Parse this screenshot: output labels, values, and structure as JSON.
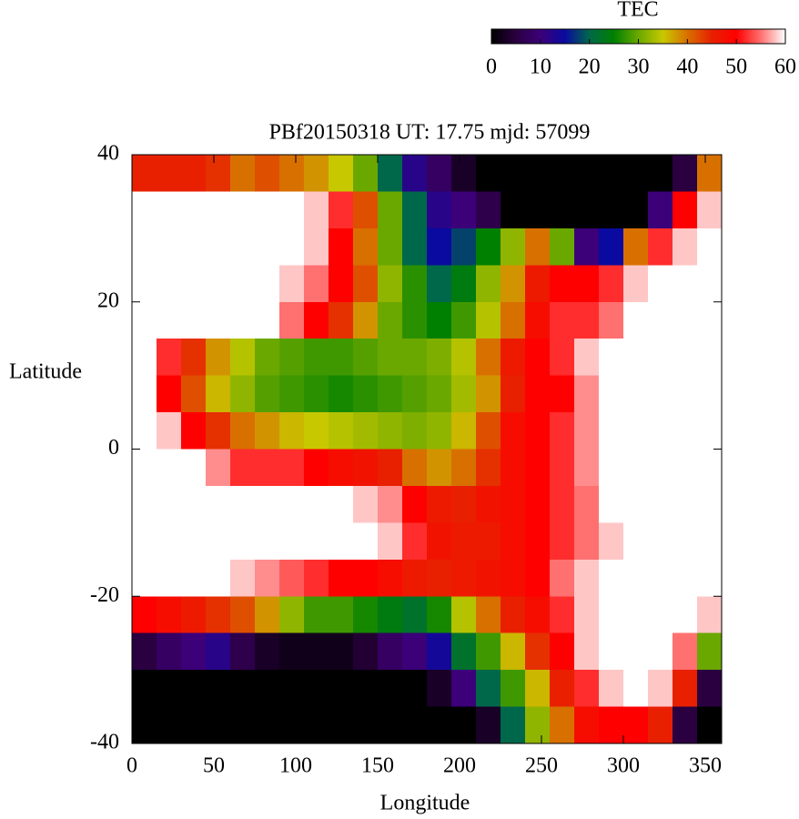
{
  "chart_data": {
    "type": "heatmap",
    "title": "PBf20150318  UT: 17.75  mjd: 57099",
    "xlabel": "Longitude",
    "ylabel": "Latitude",
    "colorbar_label": "TEC",
    "x": [
      7.5,
      22.5,
      37.5,
      52.5,
      67.5,
      82.5,
      97.5,
      112.5,
      127.5,
      142.5,
      157.5,
      172.5,
      187.5,
      202.5,
      217.5,
      232.5,
      247.5,
      262.5,
      277.5,
      292.5,
      307.5,
      322.5,
      337.5,
      352.5
    ],
    "y": [
      37.5,
      32.5,
      27.5,
      22.5,
      17.5,
      12.5,
      7.5,
      2.5,
      -2.5,
      -7.5,
      -12.5,
      -17.5,
      -22.5,
      -27.5,
      -32.5,
      -37.5
    ],
    "z": [
      [
        45,
        45,
        45,
        44,
        40,
        42,
        40,
        38,
        35,
        30,
        20,
        12,
        8,
        3,
        0,
        0,
        0,
        0,
        0,
        0,
        0,
        0,
        5,
        40
      ],
      [
        60,
        60,
        60,
        60,
        60,
        60,
        60,
        58,
        52,
        42,
        30,
        20,
        12,
        10,
        6,
        0,
        0,
        0,
        0,
        0,
        0,
        10,
        50,
        58
      ],
      [
        60,
        60,
        60,
        60,
        60,
        60,
        60,
        58,
        50,
        40,
        30,
        20,
        15,
        18,
        25,
        32,
        40,
        30,
        10,
        15,
        40,
        52,
        58,
        60
      ],
      [
        60,
        60,
        60,
        60,
        60,
        60,
        58,
        55,
        50,
        42,
        32,
        27,
        20,
        24,
        32,
        38,
        46,
        50,
        50,
        52,
        58,
        60,
        60,
        60
      ],
      [
        60,
        60,
        60,
        60,
        60,
        60,
        55,
        50,
        44,
        38,
        30,
        27,
        25,
        28,
        34,
        40,
        48,
        52,
        52,
        55,
        60,
        60,
        60,
        60
      ],
      [
        60,
        52,
        44,
        38,
        34,
        30,
        29,
        28,
        28,
        29,
        30,
        30,
        31,
        34,
        40,
        46,
        50,
        52,
        58,
        60,
        60,
        60,
        60,
        60
      ],
      [
        60,
        50,
        42,
        36,
        32,
        29,
        28,
        27,
        26,
        27,
        28,
        29,
        30,
        33,
        38,
        45,
        50,
        50,
        56,
        60,
        60,
        60,
        60,
        60
      ],
      [
        60,
        58,
        50,
        44,
        40,
        38,
        36,
        35,
        34,
        33,
        32,
        31,
        32,
        36,
        42,
        48,
        50,
        52,
        56,
        60,
        60,
        60,
        60,
        60
      ],
      [
        60,
        60,
        60,
        56,
        52,
        52,
        52,
        50,
        48,
        47,
        45,
        40,
        38,
        40,
        44,
        48,
        50,
        52,
        56,
        60,
        60,
        60,
        60,
        60
      ],
      [
        60,
        60,
        60,
        60,
        60,
        60,
        60,
        60,
        60,
        58,
        56,
        50,
        46,
        45,
        47,
        48,
        50,
        52,
        55,
        60,
        60,
        60,
        60,
        60
      ],
      [
        60,
        60,
        60,
        60,
        60,
        60,
        60,
        60,
        60,
        60,
        58,
        52,
        47,
        46,
        46,
        48,
        50,
        52,
        55,
        58,
        60,
        60,
        60,
        60
      ],
      [
        60,
        60,
        60,
        60,
        58,
        56,
        54,
        52,
        50,
        50,
        48,
        46,
        45,
        46,
        47,
        48,
        50,
        55,
        58,
        60,
        60,
        60,
        60,
        60
      ],
      [
        50,
        48,
        46,
        44,
        42,
        38,
        32,
        28,
        28,
        26,
        24,
        22,
        26,
        34,
        40,
        45,
        48,
        52,
        58,
        60,
        60,
        60,
        60,
        58
      ],
      [
        5,
        8,
        10,
        12,
        6,
        3,
        2,
        2,
        2,
        4,
        8,
        10,
        14,
        22,
        28,
        36,
        44,
        50,
        58,
        60,
        60,
        60,
        55,
        30
      ],
      [
        0,
        0,
        0,
        0,
        0,
        0,
        0,
        0,
        0,
        0,
        0,
        0,
        3,
        10,
        20,
        28,
        36,
        45,
        52,
        58,
        60,
        58,
        45,
        5
      ],
      [
        0,
        0,
        0,
        0,
        0,
        0,
        0,
        0,
        0,
        0,
        0,
        0,
        0,
        0,
        3,
        20,
        32,
        40,
        48,
        50,
        50,
        45,
        5,
        0
      ]
    ],
    "xlim": [
      0,
      360
    ],
    "ylim": [
      -40,
      40
    ],
    "xticks": [
      0,
      50,
      100,
      150,
      200,
      250,
      300,
      350
    ],
    "yticks": [
      -40,
      -20,
      0,
      20,
      40
    ],
    "cblim": [
      0,
      60
    ],
    "cbticks": [
      0,
      10,
      20,
      30,
      40,
      50,
      60
    ],
    "colormap": [
      "#000000",
      "#2a0040",
      "#3c0078",
      "#0a0aa0",
      "#00684a",
      "#008000",
      "#6aa800",
      "#c8c800",
      "#d87000",
      "#e82000",
      "#ff0000",
      "#ff7070",
      "#ffffff"
    ]
  }
}
